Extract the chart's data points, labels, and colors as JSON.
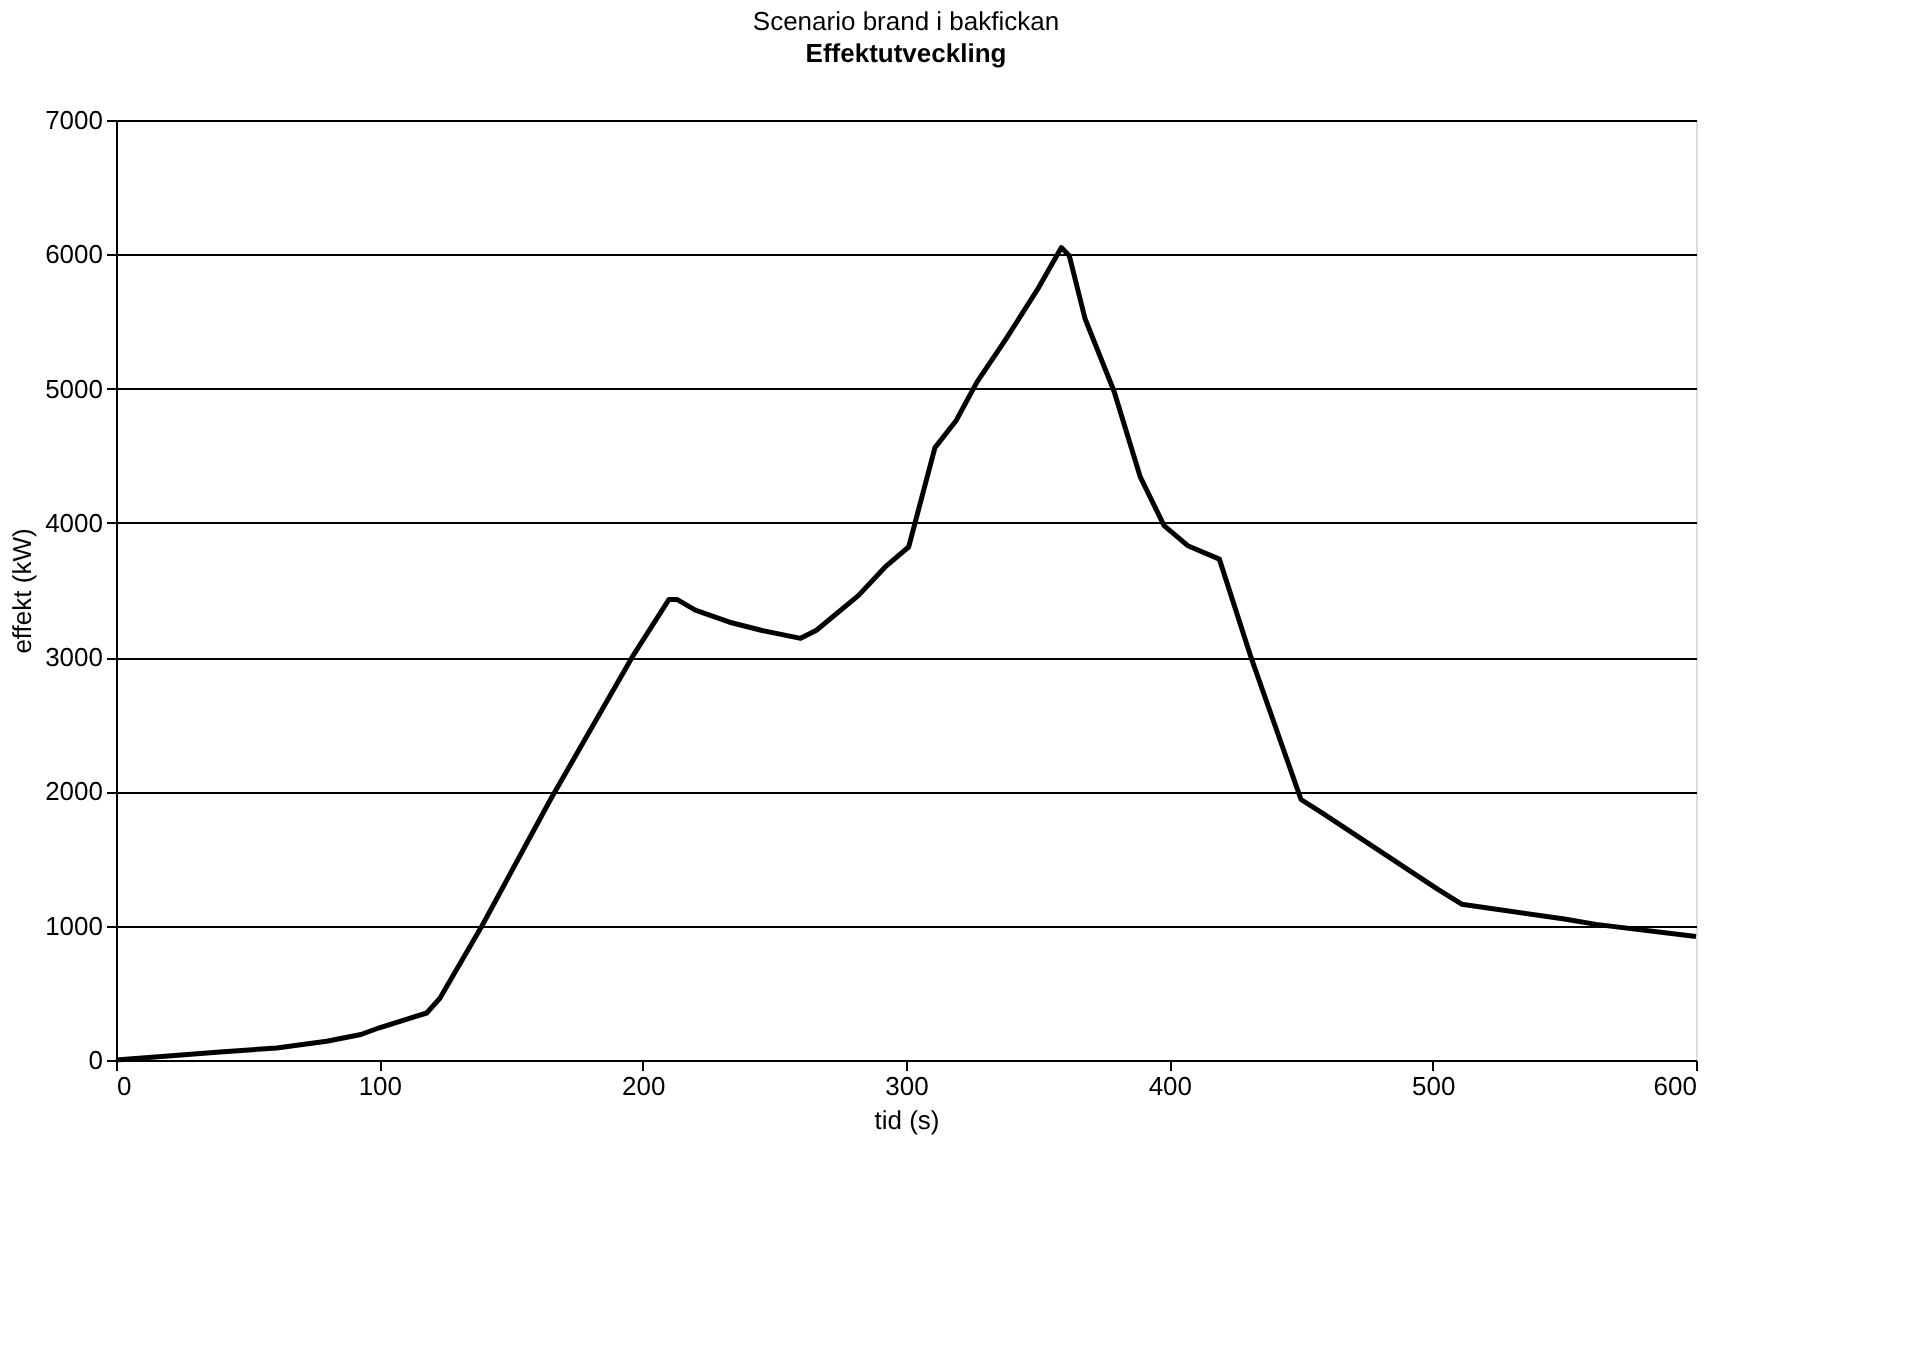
{
  "chart_data": {
    "type": "line",
    "title": "Scenario brand i bakfickan",
    "subtitle": "Effektutveckling",
    "xlabel": "tid (s)",
    "ylabel": "effekt (kW)",
    "xlim": [
      0,
      600
    ],
    "xticks": [
      0,
      100,
      200,
      300,
      400,
      500,
      600
    ],
    "ylim": [
      0,
      7000
    ],
    "yticks": [
      0,
      1000,
      2000,
      3000,
      4000,
      5000,
      6000,
      7000
    ],
    "grid": "y",
    "legend": false,
    "marker": "none",
    "line_style": "solid",
    "series": [
      {
        "color": "#000000",
        "x": [
          0,
          39.5,
          61,
          80,
          93,
          100,
          118,
          123,
          139,
          165,
          196,
          210,
          213,
          220,
          233,
          245,
          260,
          266,
          282,
          292,
          301,
          311,
          319,
          327,
          338,
          350,
          359,
          362,
          368,
          379,
          389,
          398,
          407,
          419,
          431,
          450,
          458,
          502,
          511,
          550,
          562,
          600
        ],
        "values": [
          0,
          60,
          90,
          140,
          190,
          240,
          350,
          460,
          1000,
          1940,
          3000,
          3430,
          3430,
          3350,
          3260,
          3200,
          3140,
          3200,
          3460,
          3670,
          3820,
          4560,
          4760,
          5050,
          5370,
          5740,
          6050,
          5990,
          5520,
          4980,
          4340,
          3980,
          3830,
          3730,
          3000,
          1940,
          1840,
          1270,
          1160,
          1050,
          1010,
          920
        ]
      }
    ]
  }
}
